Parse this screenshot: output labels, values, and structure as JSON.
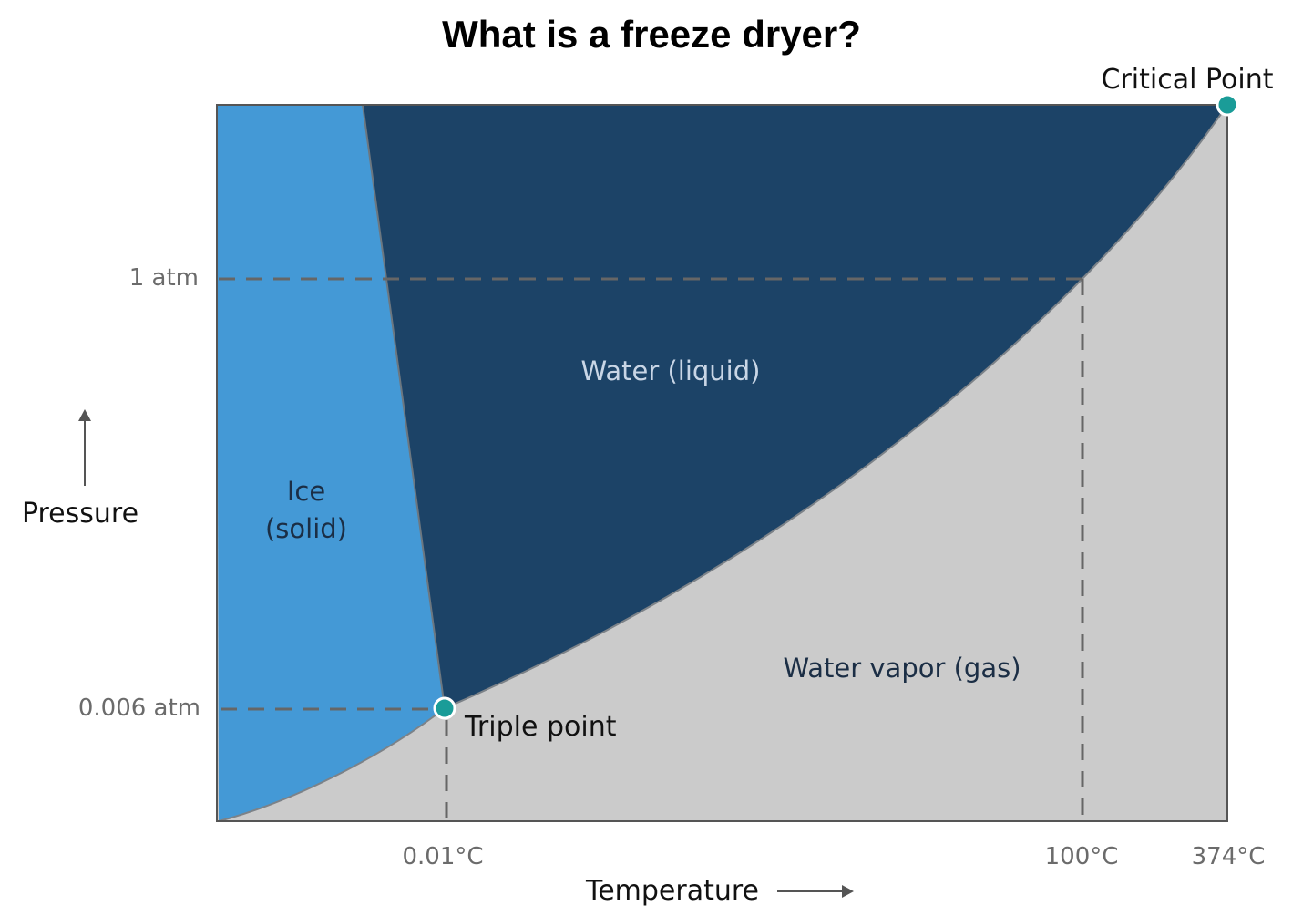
{
  "title": "What is a freeze dryer?",
  "axes": {
    "y_label": "Pressure",
    "x_label": "Temperature",
    "y_ticks": [
      "1 atm",
      "0.006 atm"
    ],
    "x_ticks": [
      "0.01°C",
      "100°C",
      "374°C"
    ]
  },
  "regions": {
    "solid": [
      "Ice",
      "(solid)"
    ],
    "liquid": "Water (liquid)",
    "gas": "Water vapor (gas)"
  },
  "points": {
    "triple": "Triple point",
    "critical": "Critical Point"
  },
  "colors": {
    "solid": "#4499d6",
    "liquid": "#1c4367",
    "gas": "#cbcbcb",
    "marker": "#1a9c98",
    "guide": "#666666"
  }
}
